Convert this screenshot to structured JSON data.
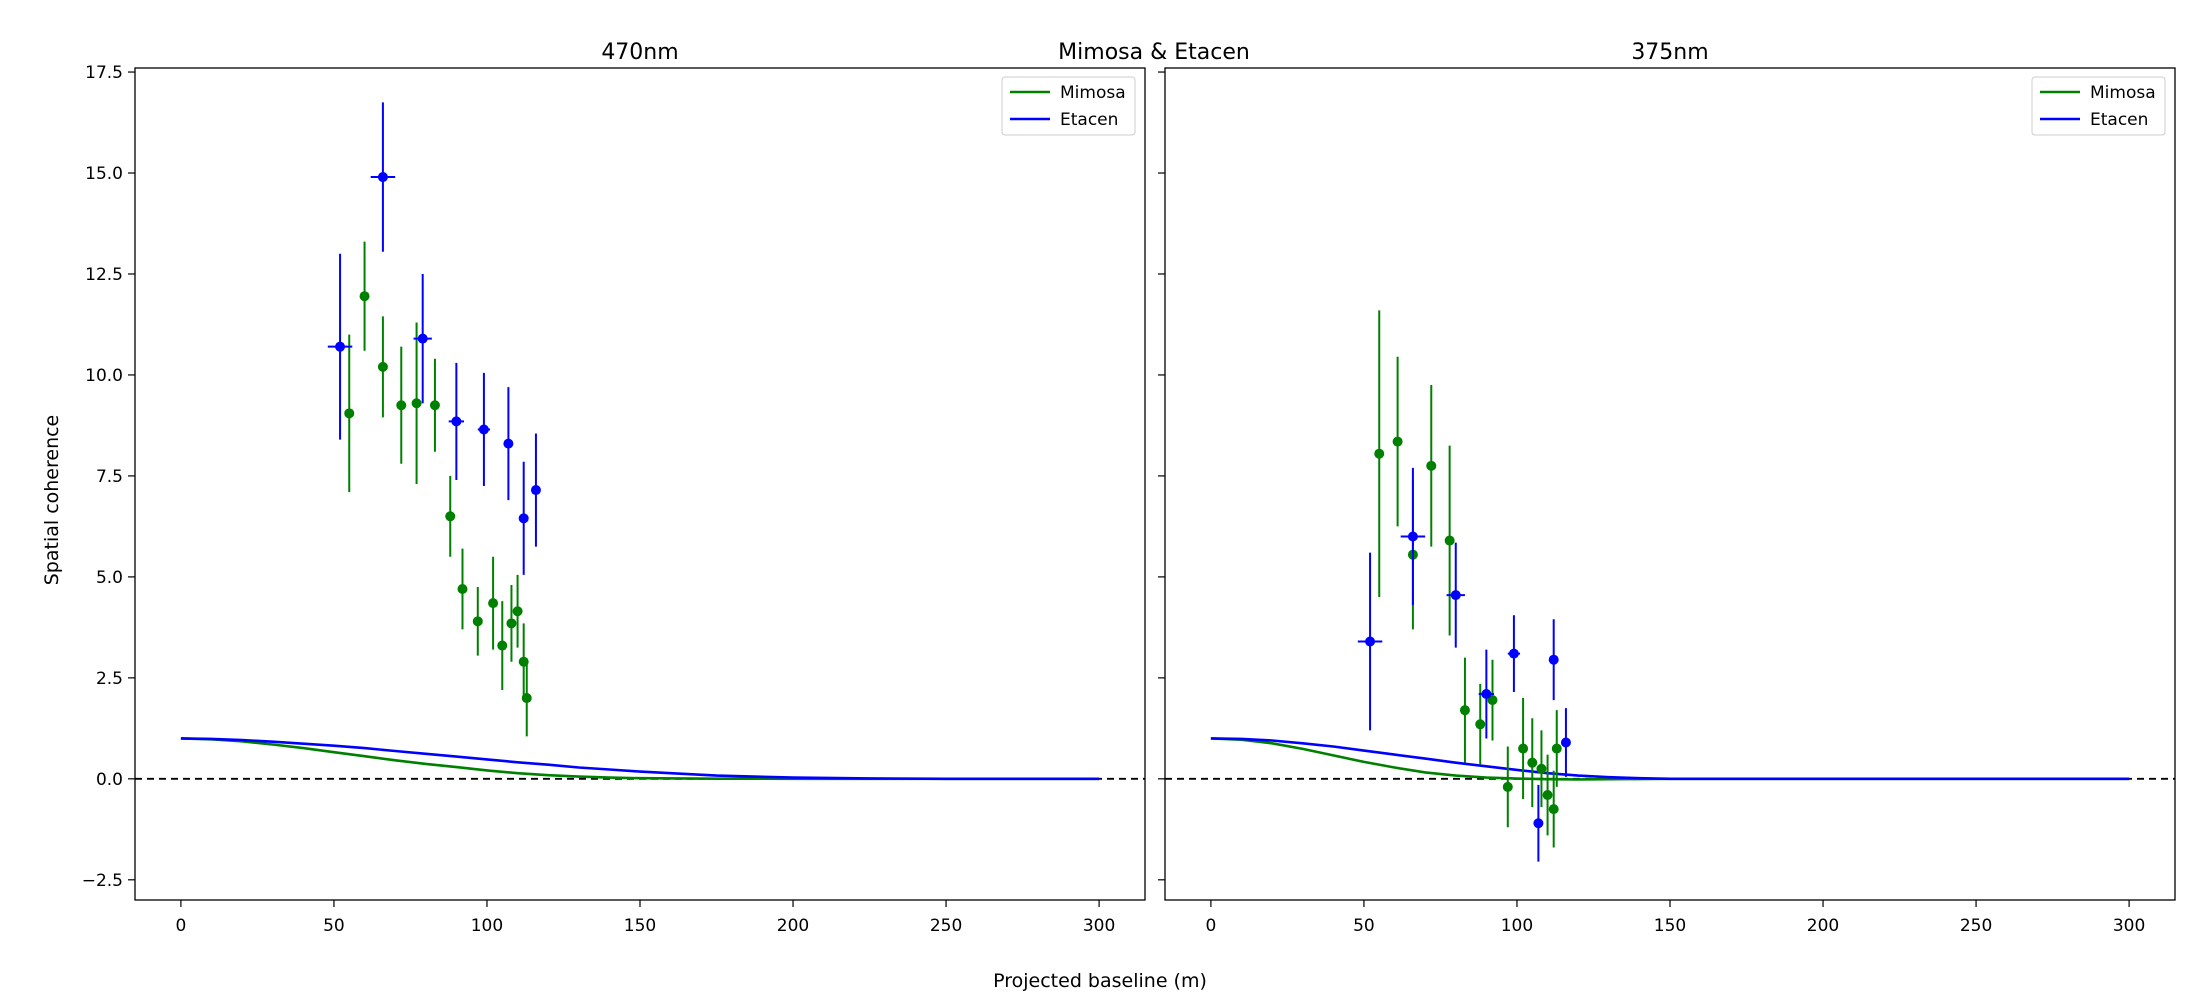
{
  "figure": {
    "suptitle": "Mimosa & Etacen",
    "xlabel": "Projected baseline (m)",
    "ylabel": "Spatial coherence"
  },
  "colors": {
    "Mimosa": "#008000",
    "Etacen": "#0000ff",
    "zero_line": "#000000"
  },
  "chart_data": [
    {
      "type": "scatter",
      "title": "470nm",
      "xlim": [
        -15,
        315
      ],
      "ylim": [
        -3.0,
        17.6
      ],
      "xticks": [
        0,
        50,
        100,
        150,
        200,
        250,
        300
      ],
      "yticks": [
        -2.5,
        0.0,
        2.5,
        5.0,
        7.5,
        10.0,
        12.5,
        15.0,
        17.5
      ],
      "ytick_labels": [
        "−2.5",
        "0.0",
        "2.5",
        "5.0",
        "7.5",
        "10.0",
        "12.5",
        "15.0",
        "17.5"
      ],
      "legend_position": "upper-right",
      "reference_line": {
        "y": 0,
        "style": "dashed"
      },
      "series": [
        {
          "name": "Mimosa",
          "color": "#008000",
          "model_curve": {
            "x": [
              0,
              10,
              20,
              30,
              40,
              50,
              60,
              70,
              80,
              90,
              100,
              110,
              120,
              130,
              140,
              150,
              175,
              200,
              250,
              300
            ],
            "y": [
              1.0,
              0.98,
              0.93,
              0.85,
              0.76,
              0.66,
              0.56,
              0.46,
              0.37,
              0.29,
              0.21,
              0.14,
              0.09,
              0.055,
              0.03,
              0.015,
              0.003,
              0.0,
              0.0,
              0.0
            ]
          },
          "points": [
            {
              "x": 55,
              "y": 9.05,
              "yerr": 1.95
            },
            {
              "x": 60,
              "y": 11.95,
              "yerr": 1.35
            },
            {
              "x": 66,
              "y": 10.2,
              "yerr": 1.25
            },
            {
              "x": 72,
              "y": 9.25,
              "yerr": 1.45
            },
            {
              "x": 77,
              "y": 9.3,
              "yerr": 2.0
            },
            {
              "x": 83,
              "y": 9.25,
              "yerr": 1.15
            },
            {
              "x": 88,
              "y": 6.5,
              "yerr": 1.0
            },
            {
              "x": 92,
              "y": 4.7,
              "yerr": 1.0
            },
            {
              "x": 97,
              "y": 3.9,
              "yerr": 0.85
            },
            {
              "x": 102,
              "y": 4.35,
              "yerr": 1.15
            },
            {
              "x": 105,
              "y": 3.3,
              "yerr": 1.1
            },
            {
              "x": 108,
              "y": 3.85,
              "yerr": 0.95
            },
            {
              "x": 110,
              "y": 4.15,
              "yerr": 0.9
            },
            {
              "x": 112,
              "y": 2.9,
              "yerr": 0.95
            },
            {
              "x": 113,
              "y": 2.0,
              "yerr": 0.95
            }
          ]
        },
        {
          "name": "Etacen",
          "color": "#0000ff",
          "model_curve": {
            "x": [
              0,
              10,
              20,
              30,
              40,
              50,
              60,
              70,
              80,
              90,
              100,
              110,
              120,
              130,
              140,
              150,
              160,
              175,
              200,
              225,
              250,
              300
            ],
            "y": [
              1.0,
              0.99,
              0.96,
              0.92,
              0.87,
              0.82,
              0.76,
              0.69,
              0.62,
              0.55,
              0.48,
              0.41,
              0.35,
              0.28,
              0.23,
              0.18,
              0.14,
              0.08,
              0.03,
              0.01,
              0.0,
              0.0
            ]
          },
          "points": [
            {
              "x": 52,
              "y": 10.7,
              "yerr": 2.3,
              "xerr": 4
            },
            {
              "x": 66,
              "y": 14.9,
              "yerr": 1.85,
              "xerr": 4
            },
            {
              "x": 79,
              "y": 10.9,
              "yerr": 1.6,
              "xerr": 3
            },
            {
              "x": 90,
              "y": 8.85,
              "yerr": 1.45,
              "xerr": 2.5
            },
            {
              "x": 99,
              "y": 8.65,
              "yerr": 1.4,
              "xerr": 2
            },
            {
              "x": 107,
              "y": 8.3,
              "yerr": 1.4
            },
            {
              "x": 112,
              "y": 6.45,
              "yerr": 1.4
            },
            {
              "x": 116,
              "y": 7.15,
              "yerr": 1.4
            }
          ]
        }
      ]
    },
    {
      "type": "scatter",
      "title": "375nm",
      "xlim": [
        -15,
        315
      ],
      "ylim": [
        -3.0,
        17.6
      ],
      "xticks": [
        0,
        50,
        100,
        150,
        200,
        250,
        300
      ],
      "yticks": [
        -2.5,
        0.0,
        2.5,
        5.0,
        7.5,
        10.0,
        12.5,
        15.0,
        17.5
      ],
      "legend_position": "upper-right",
      "reference_line": {
        "y": 0,
        "style": "dashed"
      },
      "series": [
        {
          "name": "Mimosa",
          "color": "#008000",
          "model_curve": {
            "x": [
              0,
              10,
              20,
              30,
              40,
              50,
              60,
              70,
              80,
              90,
              100,
              110,
              120,
              130,
              150,
              200,
              300
            ],
            "y": [
              1.0,
              0.97,
              0.88,
              0.74,
              0.58,
              0.42,
              0.28,
              0.16,
              0.08,
              0.03,
              0.005,
              -0.01,
              -0.015,
              -0.01,
              0.0,
              0.0,
              0.0
            ]
          },
          "points": [
            {
              "x": 55,
              "y": 8.05,
              "yerr": 3.55
            },
            {
              "x": 61,
              "y": 8.35,
              "yerr": 2.1
            },
            {
              "x": 66,
              "y": 5.55,
              "yerr": 1.85
            },
            {
              "x": 72,
              "y": 7.75,
              "yerr": 2.0
            },
            {
              "x": 78,
              "y": 5.9,
              "yerr": 2.35
            },
            {
              "x": 83,
              "y": 1.7,
              "yerr": 1.3
            },
            {
              "x": 88,
              "y": 1.35,
              "yerr": 1.0
            },
            {
              "x": 92,
              "y": 1.95,
              "yerr": 1.0
            },
            {
              "x": 97,
              "y": -0.2,
              "yerr": 1.0
            },
            {
              "x": 102,
              "y": 0.75,
              "yerr": 1.25
            },
            {
              "x": 105,
              "y": 0.4,
              "yerr": 1.1
            },
            {
              "x": 108,
              "y": 0.25,
              "yerr": 0.95
            },
            {
              "x": 110,
              "y": -0.4,
              "yerr": 1.0
            },
            {
              "x": 112,
              "y": -0.75,
              "yerr": 0.95
            },
            {
              "x": 113,
              "y": 0.75,
              "yerr": 0.95
            }
          ]
        },
        {
          "name": "Etacen",
          "color": "#0000ff",
          "model_curve": {
            "x": [
              0,
              10,
              20,
              30,
              40,
              50,
              60,
              70,
              80,
              90,
              100,
              110,
              120,
              130,
              140,
              150,
              200,
              300
            ],
            "y": [
              1.0,
              0.99,
              0.95,
              0.88,
              0.8,
              0.7,
              0.6,
              0.5,
              0.4,
              0.31,
              0.22,
              0.14,
              0.08,
              0.04,
              0.015,
              0.0,
              0.0,
              0.0
            ]
          },
          "points": [
            {
              "x": 52,
              "y": 3.4,
              "yerr": 2.2,
              "xerr": 4
            },
            {
              "x": 66,
              "y": 6.0,
              "yerr": 1.7,
              "xerr": 4
            },
            {
              "x": 80,
              "y": 4.55,
              "yerr": 1.3,
              "xerr": 3
            },
            {
              "x": 90,
              "y": 2.1,
              "yerr": 1.1,
              "xerr": 2.5
            },
            {
              "x": 99,
              "y": 3.1,
              "yerr": 0.95,
              "xerr": 2
            },
            {
              "x": 107,
              "y": -1.1,
              "yerr": 0.95
            },
            {
              "x": 112,
              "y": 2.95,
              "yerr": 1.0
            },
            {
              "x": 116,
              "y": 0.9,
              "yerr": 0.85
            }
          ]
        }
      ]
    }
  ]
}
